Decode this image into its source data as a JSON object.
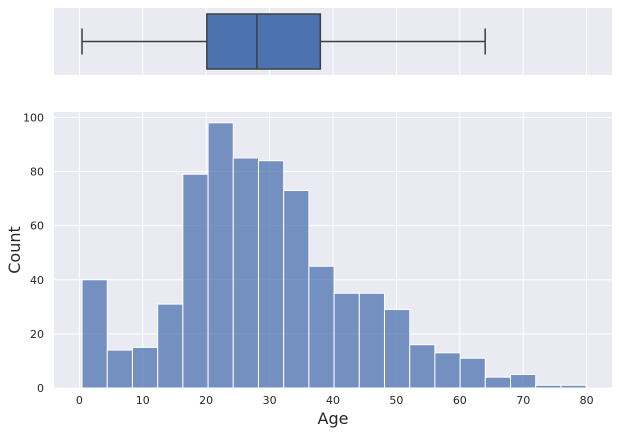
{
  "colors": {
    "panel_bg": "#eaeaf2",
    "grid": "#ffffff",
    "bar_fill": "#4c72b0",
    "bar_edge": "#ffffff",
    "box_fill": "#4c72b0",
    "whisker": "#3f3f3f",
    "text": "#262626"
  },
  "chart_data": [
    {
      "type": "box",
      "variable": "Age",
      "min": 0.42,
      "q1": 20.1,
      "median": 28.0,
      "q3": 38.0,
      "max": 64.0,
      "xlim": [
        -4.0,
        84.0
      ],
      "grid": true
    },
    {
      "type": "bar",
      "title": "",
      "xlabel": "Age",
      "ylabel": "Count",
      "bin_edges": [
        0.42,
        4.4,
        8.37,
        12.35,
        16.32,
        20.3,
        24.27,
        28.25,
        32.22,
        36.2,
        40.17,
        44.15,
        48.12,
        52.1,
        56.07,
        60.05,
        64.02,
        68.0,
        71.97,
        75.95,
        79.92
      ],
      "values": [
        40,
        14,
        15,
        31,
        79,
        98,
        85,
        84,
        73,
        45,
        35,
        35,
        29,
        16,
        13,
        11,
        4,
        5,
        1,
        1
      ],
      "xlim": [
        -4.0,
        84.0
      ],
      "ylim": [
        0,
        102
      ],
      "xticks": [
        0,
        10,
        20,
        30,
        40,
        50,
        60,
        70,
        80
      ],
      "xtick_labels": [
        "0",
        "10",
        "20",
        "30",
        "40",
        "50",
        "60",
        "70",
        "80"
      ],
      "yticks": [
        0,
        20,
        40,
        60,
        80,
        100
      ],
      "ytick_labels": [
        "0",
        "20",
        "40",
        "60",
        "80",
        "100"
      ],
      "grid": true
    }
  ]
}
